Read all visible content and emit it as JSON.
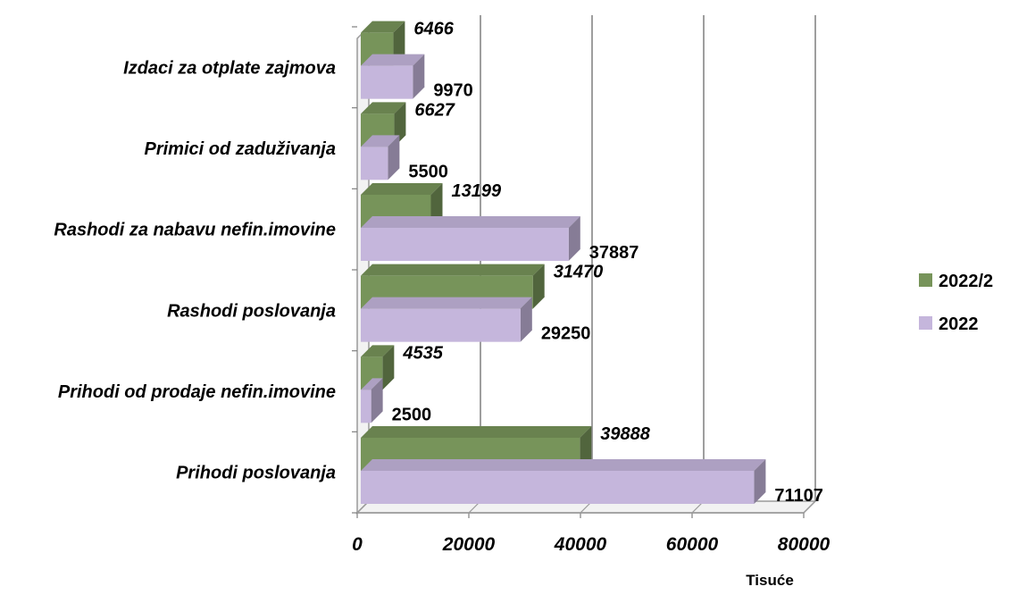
{
  "chart_data": {
    "type": "bar",
    "orientation": "horizontal",
    "style": "3d-clustered",
    "categories": [
      "Prihodi poslovanja",
      "Prihodi od prodaje nefin.imovine",
      "Rashodi poslovanja",
      "Rashodi za nabavu nefin.imovine",
      "Primici od zaduživanja",
      "Izdaci za otplate zajmova"
    ],
    "series": [
      {
        "name": "2022/2",
        "values": [
          39888,
          4535,
          31470,
          13199,
          6627,
          6466
        ],
        "color": "#77945a",
        "label_style": "italic"
      },
      {
        "name": "2022",
        "values": [
          71107,
          2500,
          29250,
          37887,
          5500,
          9970
        ],
        "color": "#c5b6dc",
        "label_style": "normal"
      }
    ],
    "x_ticks": [
      "0",
      "20000",
      "40000",
      "60000",
      "80000"
    ],
    "xlim": [
      0,
      80000
    ],
    "xlabel": "Tisuće",
    "grid": true,
    "legend_position": "right"
  }
}
